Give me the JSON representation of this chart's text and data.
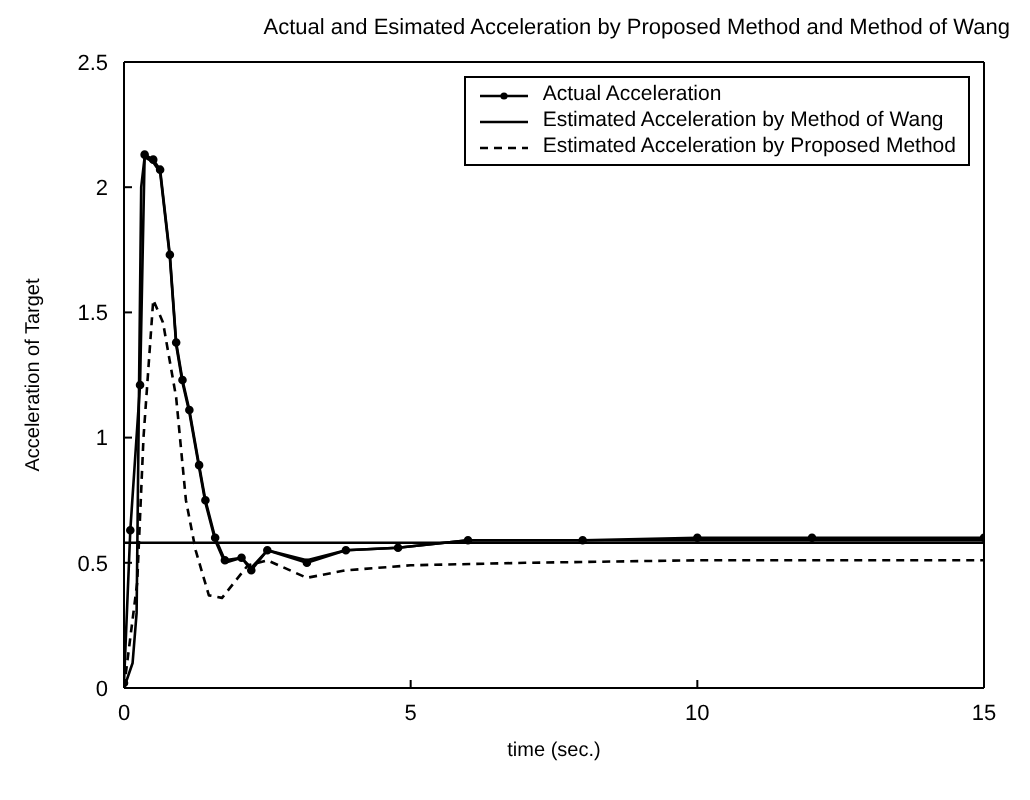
{
  "chart_data": {
    "type": "line",
    "title": "Actual and Esimated Acceleration by Proposed Method and Method of Wang",
    "xlabel": "time (sec.)",
    "ylabel": "Acceleration of Target",
    "xlim": [
      0,
      15
    ],
    "xticks": [
      0,
      5,
      10,
      15
    ],
    "ylim": [
      0,
      2.5
    ],
    "yticks": [
      0,
      0.5,
      1,
      1.5,
      2,
      2.5
    ],
    "grid": false,
    "legend": "top right",
    "ref_lines": [
      {
        "axis": "y",
        "value": 0.58
      }
    ],
    "series": [
      {
        "name": "Actual Acceleration",
        "color": "#000000",
        "marker": "circle",
        "line_style": "solid",
        "x": [
          0,
          0.11,
          0.28,
          0.36,
          0.51,
          0.63,
          0.8,
          0.91,
          1.02,
          1.14,
          1.31,
          1.42,
          1.59,
          1.76,
          2.05,
          2.22,
          2.5,
          3.19,
          3.87,
          4.78,
          6,
          8,
          10,
          12,
          15
        ],
        "values": [
          0.02,
          0.63,
          1.21,
          2.13,
          2.11,
          2.07,
          1.73,
          1.38,
          1.23,
          1.11,
          0.89,
          0.75,
          0.6,
          0.51,
          0.52,
          0.47,
          0.55,
          0.5,
          0.55,
          0.56,
          0.59,
          0.59,
          0.6,
          0.6,
          0.6
        ]
      },
      {
        "name": "Estimated Acceleration by Method of Wang",
        "color": "#000000",
        "marker": "none",
        "line_style": "solid",
        "x": [
          0,
          0.15,
          0.22,
          0.3,
          0.36,
          0.51,
          0.63,
          0.8,
          0.91,
          1.02,
          1.14,
          1.31,
          1.42,
          1.59,
          1.76,
          2.05,
          2.22,
          2.5,
          3.19,
          3.87,
          4.78,
          6,
          8,
          10,
          12,
          15
        ],
        "values": [
          0,
          0.1,
          0.3,
          2.0,
          2.12,
          2.1,
          2.06,
          1.72,
          1.37,
          1.22,
          1.1,
          0.88,
          0.74,
          0.59,
          0.5,
          0.52,
          0.48,
          0.55,
          0.51,
          0.55,
          0.56,
          0.59,
          0.59,
          0.59,
          0.59,
          0.59
        ]
      },
      {
        "name": "Estimated Acceleration by Proposed Method",
        "color": "#000000",
        "marker": "none",
        "line_style": "dashed",
        "x": [
          0,
          0.23,
          0.34,
          0.51,
          0.68,
          0.91,
          1.08,
          1.25,
          1.48,
          1.71,
          2.16,
          2.5,
          3.19,
          3.87,
          5,
          7,
          10,
          12,
          15
        ],
        "values": [
          0,
          0.42,
          1.0,
          1.55,
          1.46,
          1.16,
          0.75,
          0.55,
          0.37,
          0.36,
          0.49,
          0.51,
          0.44,
          0.47,
          0.49,
          0.5,
          0.51,
          0.51,
          0.51
        ]
      }
    ]
  }
}
